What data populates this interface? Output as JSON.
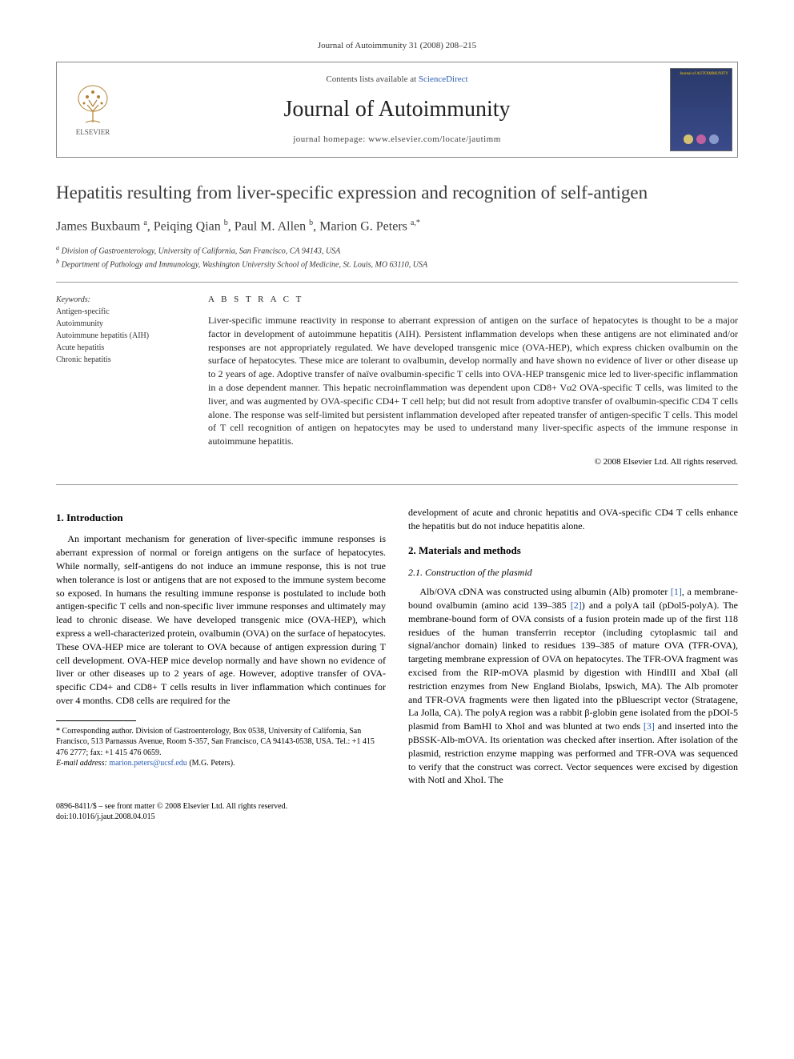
{
  "journal_ref": "Journal of Autoimmunity 31 (2008) 208–215",
  "header": {
    "publisher": "ELSEVIER",
    "contents_prefix": "Contents lists available at ",
    "contents_link": "ScienceDirect",
    "journal_name": "Journal of Autoimmunity",
    "homepage_prefix": "journal homepage: ",
    "homepage": "www.elsevier.com/locate/jautimm",
    "cover_label": "Journal of AUTOIMMUNITY"
  },
  "title": "Hepatitis resulting from liver-specific expression and recognition of self-antigen",
  "authors_html": "James Buxbaum <sup>a</sup>, Peiqing Qian <sup>b</sup>, Paul M. Allen <sup>b</sup>, Marion G. Peters <sup>a,*</sup>",
  "affiliations": [
    "a Division of Gastroenterology, University of California, San Francisco, CA 94143, USA",
    "b Department of Pathology and Immunology, Washington University School of Medicine, St. Louis, MO 63110, USA"
  ],
  "keywords_head": "Keywords:",
  "keywords": [
    "Antigen-specific",
    "Autoimmunity",
    "Autoimmune hepatitis (AIH)",
    "Acute hepatitis",
    "Chronic hepatitis"
  ],
  "abstract_head": "A B S T R A C T",
  "abstract": "Liver-specific immune reactivity in response to aberrant expression of antigen on the surface of hepatocytes is thought to be a major factor in development of autoimmune hepatitis (AIH). Persistent inflammation develops when these antigens are not eliminated and/or responses are not appropriately regulated. We have developed transgenic mice (OVA-HEP), which express chicken ovalbumin on the surface of hepatocytes. These mice are tolerant to ovalbumin, develop normally and have shown no evidence of liver or other disease up to 2 years of age. Adoptive transfer of naïve ovalbumin-specific T cells into OVA-HEP transgenic mice led to liver-specific inflammation in a dose dependent manner. This hepatic necroinflammation was dependent upon CD8+ Vα2 OVA-specific T cells, was limited to the liver, and was augmented by OVA-specific CD4+ T cell help; but did not result from adoptive transfer of ovalbumin-specific CD4 T cells alone. The response was self-limited but persistent inflammation developed after repeated transfer of antigen-specific T cells. This model of T cell recognition of antigen on hepatocytes may be used to understand many liver-specific aspects of the immune response in autoimmune hepatitis.",
  "copyright": "© 2008 Elsevier Ltd. All rights reserved.",
  "sections": {
    "intro_head": "1. Introduction",
    "intro_p1": "An important mechanism for generation of liver-specific immune responses is aberrant expression of normal or foreign antigens on the surface of hepatocytes. While normally, self-antigens do not induce an immune response, this is not true when tolerance is lost or antigens that are not exposed to the immune system become so exposed. In humans the resulting immune response is postulated to include both antigen-specific T cells and non-specific liver immune responses and ultimately may lead to chronic disease. We have developed transgenic mice (OVA-HEP), which express a well-characterized protein, ovalbumin (OVA) on the surface of hepatocytes. These OVA-HEP mice are tolerant to OVA because of antigen expression during T cell development. OVA-HEP mice develop normally and have shown no evidence of liver or other diseases up to 2 years of age. However, adoptive transfer of OVA-specific CD4+ and CD8+ T cells results in liver inflammation which continues for over 4 months. CD8 cells are required for the",
    "intro_p1_cont": "development of acute and chronic hepatitis and OVA-specific CD4 T cells enhance the hepatitis but do not induce hepatitis alone.",
    "methods_head": "2. Materials and methods",
    "plasmid_head": "2.1. Construction of the plasmid",
    "plasmid_p": "Alb/OVA cDNA was constructed using albumin (Alb) promoter [1], a membrane-bound ovalbumin (amino acid 139–385 [2]) and a polyA tail (pDol5-polyA). The membrane-bound form of OVA consists of a fusion protein made up of the first 118 residues of the human transferrin receptor (including cytoplasmic tail and signal/anchor domain) linked to residues 139–385 of mature OVA (TFR-OVA), targeting membrane expression of OVA on hepatocytes. The TFR-OVA fragment was excised from the RIP-mOVA plasmid by digestion with HindIII and XbaI (all restriction enzymes from New England Biolabs, Ipswich, MA). The Alb promoter and TFR-OVA fragments were then ligated into the pBluescript vector (Stratagene, La Jolla, CA). The polyA region was a rabbit β-globin gene isolated from the pDOI-5 plasmid from BamHI to XhoI and was blunted at two ends [3] and inserted into the pBSSK-Alb-mOVA. Its orientation was checked after insertion. After isolation of the plasmid, restriction enzyme mapping was performed and TFR-OVA was sequenced to verify that the construct was correct. Vector sequences were excised by digestion with NotI and XhoI. The"
  },
  "footnote": {
    "corr": "* Corresponding author. Division of Gastroenterology, Box 0538, University of California, San Francisco, 513 Parnassus Avenue, Room S-357, San Francisco, CA 94143-0538, USA. Tel.: +1 415 476 2777; fax: +1 415 476 0659.",
    "email_label": "E-mail address:",
    "email": "marion.peters@ucsf.edu",
    "email_suffix": " (M.G. Peters)."
  },
  "footer": {
    "line1": "0896-8411/$ – see front matter © 2008 Elsevier Ltd. All rights reserved.",
    "line2": "doi:10.1016/j.jaut.2008.04.015"
  },
  "colors": {
    "link": "#2a5db0",
    "text": "#000000",
    "heading": "#3a3a3a",
    "border": "#999999"
  }
}
